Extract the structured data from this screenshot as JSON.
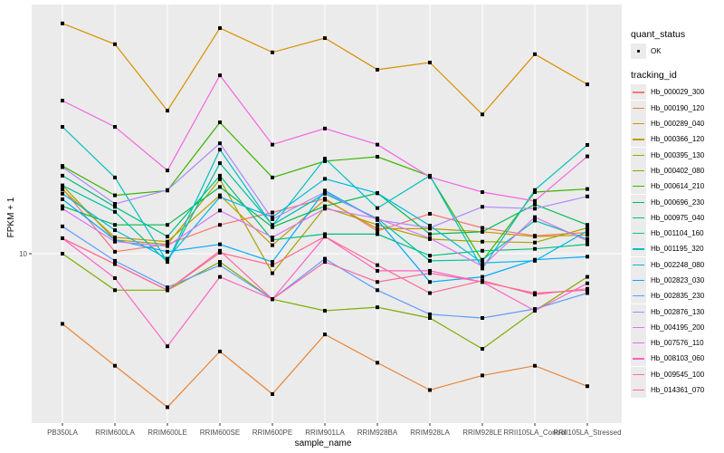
{
  "chart_data": {
    "type": "line",
    "title": "",
    "xlabel": "sample_name",
    "ylabel": "FPKM + 1",
    "y_scale": "log10",
    "y_ticks": [
      10
    ],
    "y_tick_labels": [
      "10"
    ],
    "ylim": [
      2.0,
      110
    ],
    "grid": true,
    "legend_placement": "right",
    "categories": [
      "PB350LA",
      "RRIM600LA",
      "RRIM600LE",
      "RRIM600SE",
      "RRIM600PE",
      "RRIM901LA",
      "RRIM928BA",
      "RRIM928LA",
      "RRIM928LE",
      "RRII105LA_Control",
      "RRII105LA_Stressed"
    ],
    "point_legend": {
      "title": "quant_status",
      "entries": [
        "OK"
      ]
    },
    "line_legend_title": "tracking_id",
    "series": [
      {
        "name": "Hb_000029_300",
        "color": "#F8766D",
        "values": [
          19.4,
          10.2,
          11.0,
          13.4,
          15.2,
          17.5,
          12.6,
          15.0,
          13.0,
          12.0,
          12.4
        ]
      },
      {
        "name": "Hb_000190_120",
        "color": "#EA8331",
        "values": [
          4.9,
          3.2,
          2.1,
          3.7,
          2.4,
          4.4,
          3.3,
          2.5,
          2.9,
          3.2,
          2.6
        ]
      },
      {
        "name": "Hb_000289_040",
        "color": "#D89000",
        "values": [
          103.9,
          84.1,
          42.8,
          99.1,
          77.4,
          89.5,
          64.9,
          69.8,
          41.2,
          76.0,
          55.9
        ]
      },
      {
        "name": "Hb_000366_120",
        "color": "#C09B00",
        "values": [
          19.2,
          11.8,
          11.3,
          18.1,
          10.9,
          17.3,
          12.9,
          12.9,
          12.5,
          11.9,
          12.1
        ]
      },
      {
        "name": "Hb_000395_130",
        "color": "#A3A500",
        "values": [
          20.0,
          11.5,
          11.0,
          21.3,
          8.2,
          16.0,
          13.4,
          11.6,
          11.3,
          11.2,
          13.0
        ]
      },
      {
        "name": "Hb_000402_080",
        "color": "#7CAE00",
        "values": [
          10.0,
          6.9,
          6.9,
          9.2,
          6.3,
          5.6,
          5.8,
          5.2,
          3.8,
          5.6,
          7.9
        ]
      },
      {
        "name": "Hb_000614_210",
        "color": "#39B600",
        "values": [
          24.4,
          18.1,
          19.0,
          38.0,
          21.7,
          25.6,
          26.8,
          22.0,
          9.3,
          18.7,
          19.3
        ]
      },
      {
        "name": "Hb_000696_230",
        "color": "#00BB4E",
        "values": [
          16.2,
          13.4,
          13.4,
          19.7,
          13.1,
          16.2,
          18.5,
          12.2,
          12.5,
          16.5,
          13.4
        ]
      },
      {
        "name": "Hb_000975_040",
        "color": "#00BF7D",
        "values": [
          22.1,
          16.1,
          11.9,
          22.1,
          11.5,
          12.2,
          12.2,
          9.8,
          10.3,
          10.5,
          11.0
        ]
      },
      {
        "name": "Hb_001104_160",
        "color": "#00C1A3",
        "values": [
          20.0,
          15.3,
          9.2,
          25.1,
          13.4,
          18.4,
          14.3,
          9.3,
          9.4,
          14.0,
          11.6
        ]
      },
      {
        "name": "Hb_001195_320",
        "color": "#00BFC4",
        "values": [
          36.3,
          21.7,
          9.2,
          28.8,
          13.3,
          26.3,
          15.9,
          22.1,
          8.6,
          19.1,
          30.2
        ]
      },
      {
        "name": "Hb_002248_080",
        "color": "#00B8E7",
        "values": [
          18.4,
          12.7,
          9.5,
          17.8,
          14.5,
          21.4,
          18.5,
          13.3,
          9.1,
          9.3,
          12.6
        ]
      },
      {
        "name": "Hb_002823_030",
        "color": "#00A9FF",
        "values": [
          17.4,
          11.5,
          10.2,
          11.0,
          9.2,
          19.0,
          14.1,
          7.5,
          7.9,
          9.4,
          9.7
        ]
      },
      {
        "name": "Hb_002835_230",
        "color": "#619CFF",
        "values": [
          13.2,
          9.3,
          7.1,
          8.9,
          6.3,
          9.5,
          6.9,
          5.4,
          5.2,
          5.7,
          6.7
        ]
      },
      {
        "name": "Hb_002876_130",
        "color": "#AE87FF",
        "values": [
          24.1,
          16.6,
          19.1,
          30.7,
          14.2,
          18.7,
          14.1,
          13.0,
          16.1,
          15.8,
          17.9
        ]
      },
      {
        "name": "Hb_004195_200",
        "color": "#DB72FB",
        "values": [
          15.8,
          11.3,
          10.8,
          15.5,
          11.8,
          15.8,
          14.3,
          11.7,
          8.8,
          14.5,
          11.4
        ]
      },
      {
        "name": "Hb_007576_110",
        "color": "#F564E3",
        "values": [
          47.4,
          36.3,
          23.3,
          61.3,
          30.3,
          35.7,
          30.3,
          21.8,
          18.7,
          17.1,
          26.9
        ]
      },
      {
        "name": "Hb_008103_060",
        "color": "#FF61C3",
        "values": [
          11.7,
          7.8,
          3.9,
          7.9,
          6.3,
          11.9,
          8.4,
          8.4,
          7.5,
          5.6,
          7.4
        ]
      },
      {
        "name": "Hb_009545_100",
        "color": "#FF68A1",
        "values": [
          11.7,
          9.0,
          6.9,
          10.3,
          6.3,
          9.2,
          7.5,
          8.2,
          7.5,
          6.7,
          6.9
        ]
      },
      {
        "name": "Hb_014361_070",
        "color": "#FF6C91",
        "values": [
          11.7,
          9.0,
          6.9,
          10.1,
          8.9,
          11.9,
          8.9,
          6.7,
          7.6,
          6.6,
          7.0
        ]
      }
    ]
  }
}
